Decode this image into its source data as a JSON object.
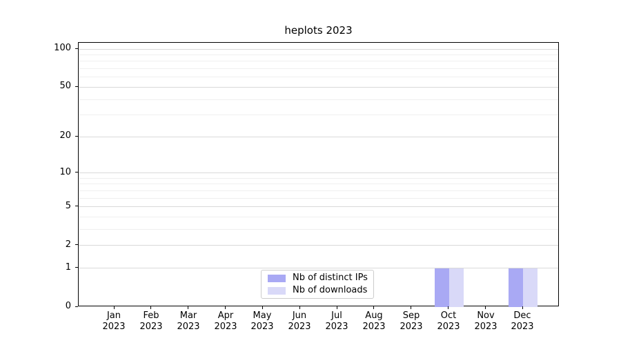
{
  "title": "heplots 2023",
  "legend": {
    "items": [
      {
        "label": "Nb of distinct IPs",
        "color": "#a9a9f4"
      },
      {
        "label": "Nb of downloads",
        "color": "#d9d9f8"
      }
    ]
  },
  "chart_data": {
    "type": "bar",
    "title": "heplots 2023",
    "categories": [
      "Jan 2023",
      "Feb 2023",
      "Mar 2023",
      "Apr 2023",
      "May 2023",
      "Jun 2023",
      "Jul 2023",
      "Aug 2023",
      "Sep 2023",
      "Oct 2023",
      "Nov 2023",
      "Dec 2023"
    ],
    "series": [
      {
        "name": "Nb of distinct IPs",
        "color": "#a9a9f4",
        "values": [
          0,
          0,
          0,
          0,
          0,
          0,
          0,
          0,
          0,
          1,
          0,
          1
        ]
      },
      {
        "name": "Nb of downloads",
        "color": "#d9d9f8",
        "values": [
          0,
          0,
          0,
          0,
          0,
          0,
          0,
          0,
          0,
          1,
          0,
          1
        ]
      }
    ],
    "xlabel": "",
    "ylabel": "",
    "yscale": "log1p",
    "yticks": [
      0,
      1,
      2,
      5,
      10,
      20,
      50,
      100
    ],
    "minor_gridlines": [
      3,
      4,
      6,
      7,
      8,
      9,
      30,
      40,
      60,
      70,
      80,
      90
    ],
    "major_gridlines": [
      1,
      2,
      5,
      10,
      20,
      50,
      100
    ],
    "ylim": [
      0,
      112
    ],
    "grid": true,
    "legend_position": "lower center",
    "major_grid_color": "#d9d9d9",
    "minor_grid_color": "#efefef"
  }
}
